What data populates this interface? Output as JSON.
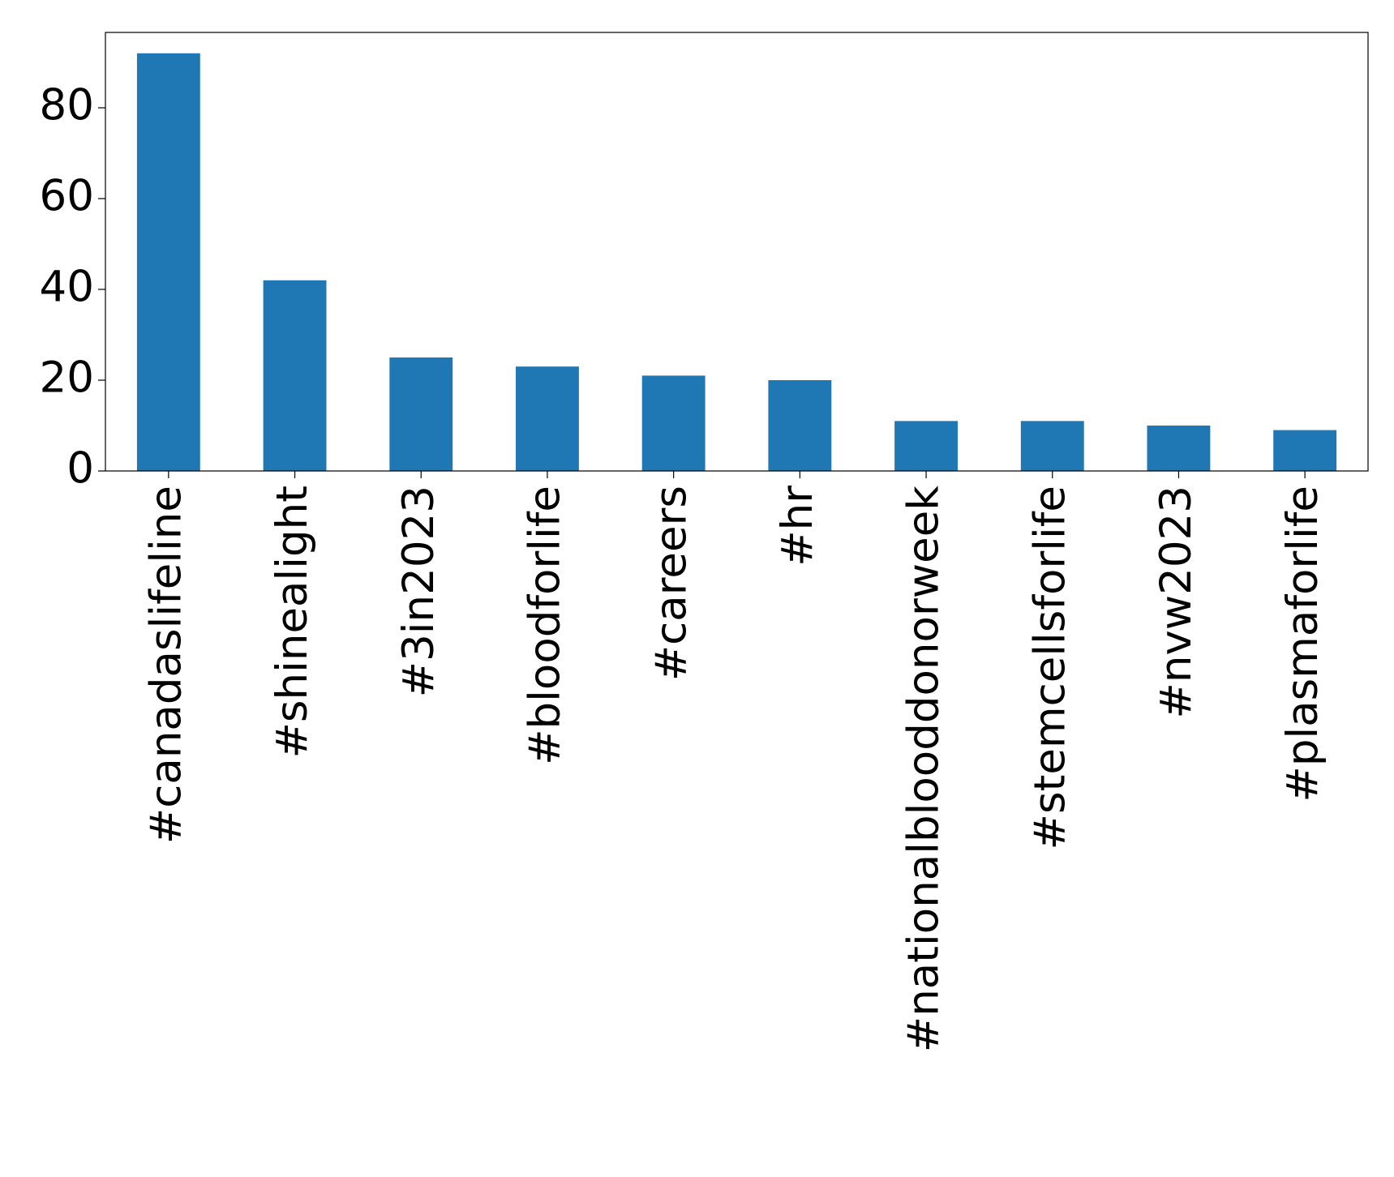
{
  "chart_data": {
    "type": "bar",
    "categories": [
      "#canadaslifeline",
      "#shinealight",
      "#3in2023",
      "#bloodforlife",
      "#careers",
      "#hr",
      "#nationalblooddonorweek",
      "#stemcellsforlife",
      "#nvw2023",
      "#plasmaforlife"
    ],
    "values": [
      92,
      42,
      25,
      23,
      21,
      20,
      11,
      11,
      10,
      9
    ],
    "color": "#1f77b4",
    "ylim": [
      0,
      96.6
    ],
    "yticks": [
      0,
      20,
      40,
      60,
      80
    ],
    "grid": false
  }
}
